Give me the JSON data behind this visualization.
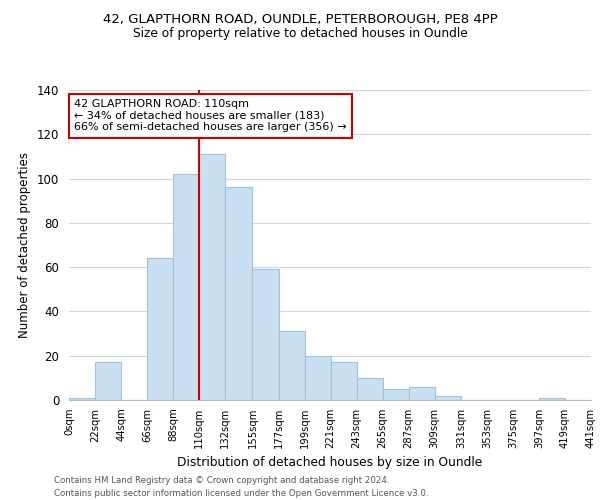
{
  "title": "42, GLAPTHORN ROAD, OUNDLE, PETERBOROUGH, PE8 4PP",
  "subtitle": "Size of property relative to detached houses in Oundle",
  "xlabel": "Distribution of detached houses by size in Oundle",
  "ylabel": "Number of detached properties",
  "footnote1": "Contains HM Land Registry data © Crown copyright and database right 2024.",
  "footnote2": "Contains public sector information licensed under the Open Government Licence v3.0.",
  "bar_edges": [
    0,
    22,
    44,
    66,
    88,
    110,
    132,
    155,
    177,
    199,
    221,
    243,
    265,
    287,
    309,
    331,
    353,
    375,
    397,
    419,
    441
  ],
  "bar_heights": [
    1,
    17,
    0,
    64,
    102,
    111,
    96,
    59,
    31,
    20,
    17,
    10,
    5,
    6,
    2,
    0,
    0,
    0,
    1,
    0
  ],
  "tick_labels": [
    "0sqm",
    "22sqm",
    "44sqm",
    "66sqm",
    "88sqm",
    "110sqm",
    "132sqm",
    "155sqm",
    "177sqm",
    "199sqm",
    "221sqm",
    "243sqm",
    "265sqm",
    "287sqm",
    "309sqm",
    "331sqm",
    "353sqm",
    "375sqm",
    "397sqm",
    "419sqm",
    "441sqm"
  ],
  "bar_color": "#c9dff2",
  "bar_edge_color": "#a0c4e0",
  "vline_x": 110,
  "vline_color": "#cc0000",
  "annotation_title": "42 GLAPTHORN ROAD: 110sqm",
  "annotation_line1": "← 34% of detached houses are smaller (183)",
  "annotation_line2": "66% of semi-detached houses are larger (356) →",
  "annotation_box_edge": "#cc0000",
  "ylim": [
    0,
    140
  ],
  "yticks": [
    0,
    20,
    40,
    60,
    80,
    100,
    120,
    140
  ],
  "background_color": "#ffffff",
  "grid_color": "#d0d8e8"
}
